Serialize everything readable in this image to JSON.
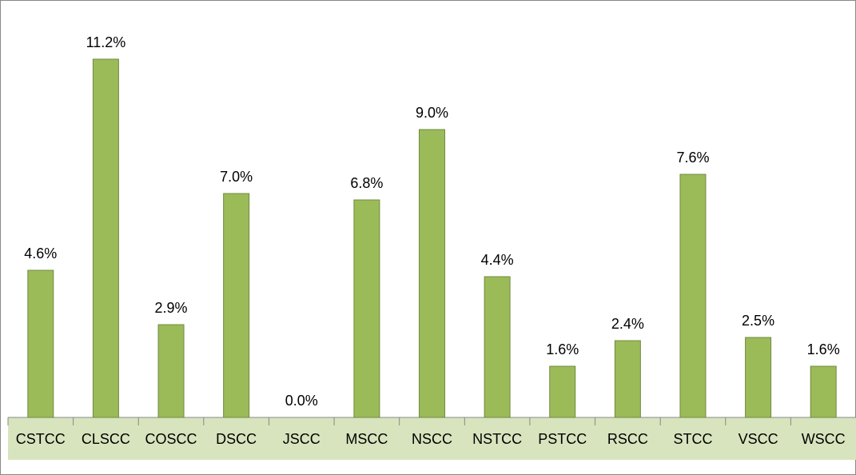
{
  "chart_data": {
    "type": "bar",
    "categories": [
      "CSTCC",
      "CLSCC",
      "COSCC",
      "DSCC",
      "JSCC",
      "MSCC",
      "NSCC",
      "NSTCC",
      "PSTCC",
      "RSCC",
      "STCC",
      "VSCC",
      "WSCC"
    ],
    "values": [
      4.6,
      11.2,
      2.9,
      7.0,
      0.0,
      6.8,
      9.0,
      4.4,
      1.6,
      2.4,
      7.6,
      2.5,
      1.6
    ],
    "value_labels": [
      "4.6%",
      "11.2%",
      "2.9%",
      "7.0%",
      "0.0%",
      "6.8%",
      "9.0%",
      "4.4%",
      "1.6%",
      "2.4%",
      "7.6%",
      "2.5%",
      "1.6%"
    ],
    "color": "#9bbb59"
  }
}
